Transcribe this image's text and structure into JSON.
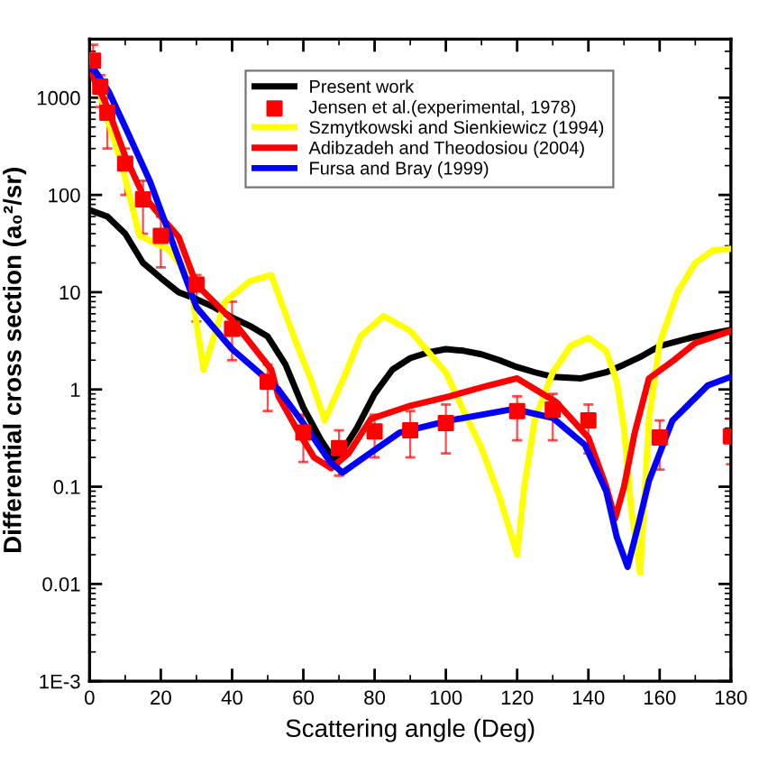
{
  "chart_data": {
    "type": "line",
    "xlabel": "Scattering angle (Deg)",
    "ylabel": "Differential cross section (a₀²/sr)",
    "log": "y",
    "xlim": [
      0,
      180
    ],
    "ylim": [
      0.001,
      4000
    ],
    "xticks": [
      0,
      20,
      40,
      60,
      80,
      100,
      120,
      140,
      160,
      180
    ],
    "yticks": [
      {
        "value": 0.001,
        "label": "1E-3"
      },
      0.01,
      0.1,
      1,
      10,
      100,
      1000
    ],
    "grid": false,
    "legend": "top",
    "line_style": "solid",
    "series": [
      {
        "name": "Present work",
        "color": "#000000",
        "marker": "none",
        "x": [
          0,
          5,
          10,
          15,
          20,
          25,
          30,
          35,
          40,
          45,
          50,
          55,
          60,
          65,
          69,
          75,
          80,
          85,
          90,
          95,
          100,
          105,
          110,
          115,
          120,
          125,
          130,
          138,
          145,
          150,
          155,
          160,
          170,
          180
        ],
        "values": [
          70,
          60,
          40,
          20,
          14,
          10,
          8.5,
          7,
          5.5,
          4.5,
          3.5,
          1.8,
          0.65,
          0.3,
          0.18,
          0.4,
          0.9,
          1.6,
          2.1,
          2.4,
          2.6,
          2.5,
          2.3,
          2.0,
          1.7,
          1.5,
          1.35,
          1.3,
          1.5,
          1.8,
          2.2,
          2.8,
          3.5,
          4.1
        ]
      },
      {
        "name": "Jensen et al.(experimental, 1978)",
        "type": "scatter",
        "marker": "square",
        "color": "#ff0000",
        "x": [
          1,
          3,
          5,
          10,
          15,
          20,
          30,
          40,
          50,
          60,
          70,
          80,
          90,
          100,
          120,
          130,
          140,
          160,
          180
        ],
        "values": [
          2400,
          1300,
          700,
          210,
          90,
          38,
          12,
          4.2,
          1.2,
          0.36,
          0.25,
          0.37,
          0.38,
          0.45,
          0.6,
          0.62,
          0.48,
          0.32,
          0.33
        ],
        "errors": [
          [
            1500,
            3500
          ],
          [
            800,
            1700
          ],
          [
            300,
            1000
          ],
          [
            100,
            300
          ],
          [
            40,
            140
          ],
          [
            18,
            60
          ],
          [
            5,
            15
          ],
          [
            2,
            8
          ],
          [
            0.6,
            1.8
          ],
          [
            0.18,
            0.55
          ],
          [
            0.13,
            0.38
          ],
          [
            0.2,
            0.55
          ],
          [
            0.2,
            0.6
          ],
          [
            0.22,
            0.7
          ],
          [
            0.3,
            0.85
          ],
          [
            0.3,
            0.9
          ],
          [
            0.22,
            0.7
          ],
          [
            0.15,
            0.48
          ],
          [
            0.17,
            0.5
          ]
        ]
      },
      {
        "name": "Szmytkowski and Sienkiewicz (1994)",
        "color": "#ffff00",
        "marker": "none",
        "x": [
          0,
          5,
          9,
          14,
          22,
          28,
          32,
          38,
          45,
          51,
          58,
          62,
          66,
          72,
          76,
          82.5,
          90,
          100,
          105,
          110,
          115,
          118,
          120,
          122,
          125,
          130,
          135,
          140,
          145,
          148,
          150,
          152,
          154.5,
          157,
          160,
          165,
          170,
          175,
          180
        ],
        "values": [
          2700,
          600,
          210,
          38,
          28,
          14.5,
          1.6,
          8,
          13,
          15,
          3,
          1.3,
          0.48,
          1.5,
          3.5,
          5.7,
          4,
          1.5,
          0.6,
          0.25,
          0.08,
          0.035,
          0.02,
          0.1,
          0.5,
          1.5,
          2.8,
          3.4,
          2.5,
          1.2,
          0.4,
          0.06,
          0.013,
          0.5,
          3,
          10,
          20,
          27,
          28
        ]
      },
      {
        "name": "Adibzadeh and Theodosiou (2004)",
        "color": "#ff0000",
        "marker": "none",
        "x": [
          0,
          5,
          10,
          15,
          20,
          25,
          30,
          40,
          51,
          53,
          58,
          63,
          67.8,
          72.7,
          79,
          90,
          101,
          112,
          120,
          131,
          140,
          145,
          147.5,
          150,
          153,
          157,
          164,
          170,
          180
        ],
        "values": [
          2000,
          800,
          250,
          100,
          60,
          37,
          12,
          5.2,
          1.6,
          0.85,
          0.4,
          0.2,
          0.155,
          0.22,
          0.5,
          0.68,
          0.85,
          1.1,
          1.3,
          0.74,
          0.32,
          0.1,
          0.047,
          0.1,
          0.36,
          1.3,
          2,
          3,
          4
        ]
      },
      {
        "name": "Fursa and Bray (1999)",
        "color": "#0000ff",
        "marker": "none",
        "x": [
          0,
          1.5,
          5.4,
          10,
          17,
          25,
          30,
          40,
          53,
          60.8,
          67.5,
          71,
          77,
          87,
          101,
          119,
          130,
          139,
          145,
          148,
          151,
          154,
          157,
          163.6,
          173.5,
          180
        ],
        "values": [
          2000,
          1900,
          1150,
          500,
          137,
          22,
          7,
          2.6,
          1,
          0.41,
          0.18,
          0.14,
          0.2,
          0.36,
          0.48,
          0.63,
          0.51,
          0.27,
          0.09,
          0.03,
          0.015,
          0.04,
          0.115,
          0.48,
          1.1,
          1.35
        ]
      }
    ]
  }
}
